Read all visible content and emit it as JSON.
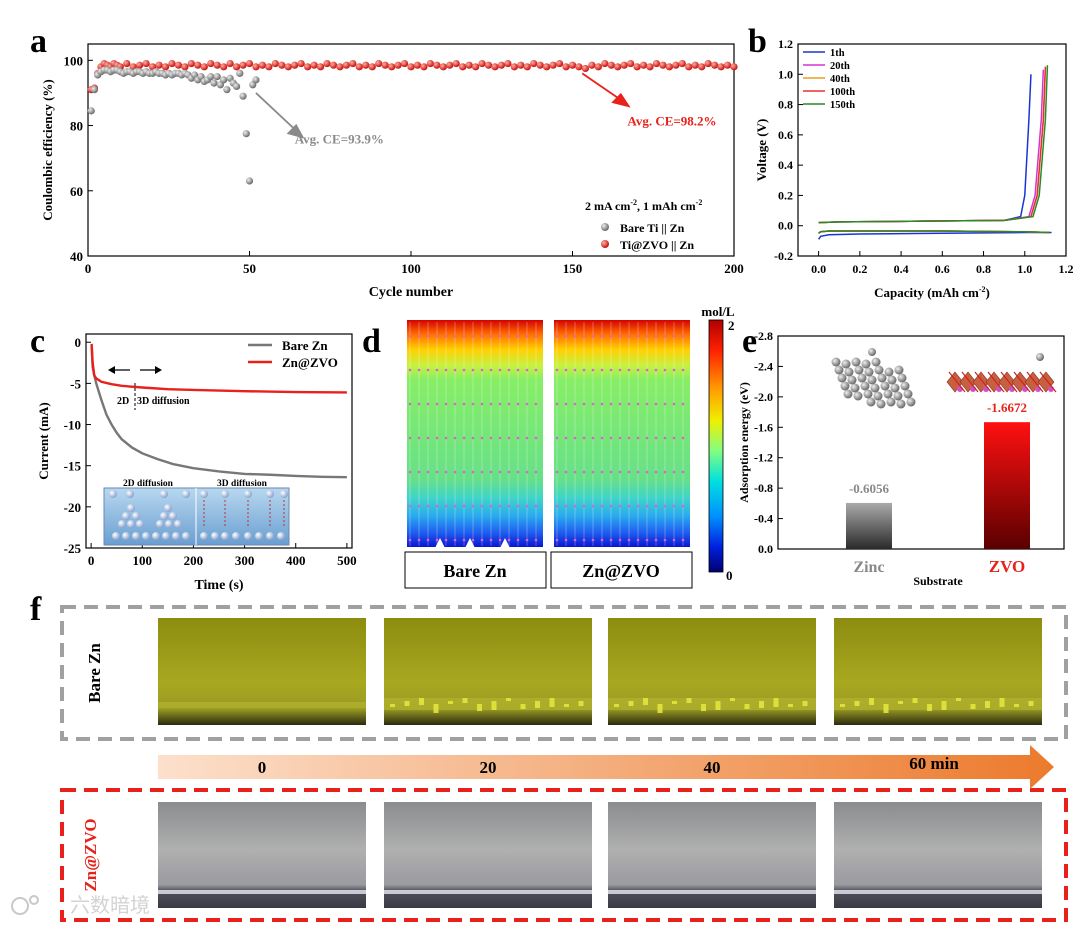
{
  "chart_data": [
    {
      "panel": "a",
      "type": "scatter",
      "xlabel": "Cycle number",
      "ylabel": "Coulombic efficiency (%)",
      "xlim": [
        0,
        200
      ],
      "ylim": [
        40,
        105
      ],
      "xticks": [
        0,
        50,
        100,
        150,
        200
      ],
      "yticks": [
        40,
        60,
        80,
        100
      ],
      "condition": "2 mA cm⁻², 1 mAh cm⁻²",
      "condition_main": "2 mA cm",
      "condition_sup1": "-2",
      "condition_mid": ", 1 mAh cm",
      "condition_sup2": "-2",
      "annotations": [
        {
          "text": "Avg. CE=93.9%",
          "color": "#8a8a8a"
        },
        {
          "text": "Avg. CE=98.2%",
          "color": "#e8211b"
        }
      ],
      "series": [
        {
          "name": "Bare Ti || Zn",
          "color": "#8c8c8c",
          "x": [
            1,
            2,
            3,
            4,
            5,
            6,
            7,
            8,
            9,
            10,
            11,
            12,
            13,
            14,
            15,
            16,
            17,
            18,
            19,
            20,
            21,
            22,
            23,
            24,
            25,
            26,
            27,
            28,
            29,
            30,
            31,
            32,
            33,
            34,
            35,
            36,
            37,
            38,
            39,
            40,
            41,
            42,
            43,
            44,
            45,
            46,
            47,
            48,
            49,
            50,
            51,
            52
          ],
          "y": [
            84.5,
            91,
            95.5,
            96.5,
            97,
            97,
            96.5,
            97,
            97,
            96.5,
            96,
            96.5,
            96.5,
            96,
            96.5,
            96.5,
            96,
            96.5,
            96,
            96,
            96.5,
            96,
            96,
            95.5,
            96,
            95.5,
            96,
            96,
            95.5,
            96,
            95.5,
            94.5,
            95.5,
            94,
            95,
            93.5,
            94,
            95,
            93,
            95,
            92.5,
            94,
            91,
            94.5,
            93,
            92,
            96,
            89,
            77.5,
            63,
            92.5,
            94
          ]
        },
        {
          "name": "Ti@ZVO || Zn",
          "color": "#e8211b",
          "x": [
            1,
            2,
            3,
            4,
            5,
            6,
            7,
            8,
            9,
            10,
            12,
            14,
            16,
            18,
            20,
            22,
            24,
            26,
            28,
            30,
            32,
            34,
            36,
            38,
            40,
            42,
            44,
            46,
            48,
            50,
            52,
            54,
            56,
            58,
            60,
            62,
            64,
            66,
            68,
            70,
            72,
            74,
            76,
            78,
            80,
            82,
            84,
            86,
            88,
            90,
            92,
            94,
            96,
            98,
            100,
            102,
            104,
            106,
            108,
            110,
            112,
            114,
            116,
            118,
            120,
            122,
            124,
            126,
            128,
            130,
            132,
            134,
            136,
            138,
            140,
            142,
            144,
            146,
            148,
            150,
            152,
            154,
            156,
            158,
            160,
            162,
            164,
            166,
            168,
            170,
            172,
            174,
            176,
            178,
            180,
            182,
            184,
            186,
            188,
            190,
            192,
            194,
            196,
            198,
            200
          ],
          "y": [
            91,
            91.5,
            96,
            98,
            99,
            98.5,
            98,
            99,
            98.5,
            98,
            99,
            98,
            98.5,
            99,
            98,
            98.5,
            98,
            99,
            98.5,
            98,
            99,
            98.5,
            98,
            99,
            98.5,
            98,
            99,
            98,
            98.5,
            99,
            98,
            98.5,
            98,
            99,
            98.5,
            98,
            98.5,
            99,
            98,
            98.5,
            98,
            99,
            98.5,
            98,
            98.5,
            99,
            98,
            98.5,
            98,
            99,
            98.5,
            98,
            98.5,
            99,
            98,
            98.5,
            98,
            99,
            98.5,
            98,
            98.5,
            99,
            98,
            98.5,
            98,
            99,
            98.5,
            98,
            98.5,
            99,
            98,
            98.5,
            98,
            99,
            98.5,
            98,
            98.5,
            99,
            98,
            98.5,
            98,
            97.5,
            98.5,
            98,
            99,
            98.5,
            98,
            98.5,
            99,
            98,
            98.5,
            98,
            99,
            98.5,
            98,
            98.5,
            99,
            98,
            98.5,
            98,
            99,
            98.5,
            98,
            98.5,
            98
          ]
        }
      ]
    },
    {
      "panel": "b",
      "type": "line",
      "xlabel": "Capacity (mAh cm⁻²)",
      "xlabel_main": "Capacity (mAh cm",
      "xlabel_sup": "-2",
      "xlabel_end": ")",
      "ylabel": "Voltage (V)",
      "xlim": [
        -0.1,
        1.2
      ],
      "ylim": [
        -0.2,
        1.2
      ],
      "xticks": [
        0.0,
        0.2,
        0.4,
        0.6,
        0.8,
        1.0,
        1.2
      ],
      "yticks": [
        -0.2,
        0.0,
        0.2,
        0.4,
        0.6,
        0.8,
        1.0,
        1.2
      ],
      "series": [
        {
          "name": "1th",
          "color": "#1a35d6",
          "charge_x": [
            0.0,
            0.1,
            0.5,
            0.9,
            0.98,
            1.0,
            1.02,
            1.03
          ],
          "charge_y": [
            0.02,
            0.025,
            0.03,
            0.035,
            0.06,
            0.2,
            0.7,
            1.0
          ],
          "discharge_x": [
            0.0,
            0.01,
            0.05,
            0.2,
            0.6,
            1.0,
            1.13
          ],
          "discharge_y": [
            -0.09,
            -0.07,
            -0.06,
            -0.055,
            -0.05,
            -0.045,
            -0.045
          ]
        },
        {
          "name": "20th",
          "color": "#d434d4",
          "charge_x": [
            0.0,
            0.1,
            0.5,
            0.9,
            1.02,
            1.05,
            1.08,
            1.09
          ],
          "charge_y": [
            0.02,
            0.025,
            0.03,
            0.035,
            0.06,
            0.2,
            0.7,
            1.03
          ],
          "discharge_x": [
            0.0,
            0.01,
            0.05,
            0.2,
            0.6,
            1.0,
            1.12
          ],
          "discharge_y": [
            -0.05,
            -0.04,
            -0.035,
            -0.035,
            -0.035,
            -0.04,
            -0.045
          ]
        },
        {
          "name": "40th",
          "color": "#e8a020",
          "charge_x": [
            0.0,
            0.1,
            0.5,
            0.9,
            1.03,
            1.06,
            1.09,
            1.1
          ],
          "charge_y": [
            0.02,
            0.025,
            0.03,
            0.035,
            0.06,
            0.2,
            0.7,
            1.04
          ],
          "discharge_x": [
            0.0,
            0.01,
            0.05,
            0.2,
            0.6,
            1.0,
            1.12
          ],
          "discharge_y": [
            -0.05,
            -0.04,
            -0.035,
            -0.035,
            -0.035,
            -0.04,
            -0.045
          ]
        },
        {
          "name": "100th",
          "color": "#e83030",
          "charge_x": [
            0.0,
            0.1,
            0.5,
            0.9,
            1.03,
            1.06,
            1.09,
            1.1
          ],
          "charge_y": [
            0.02,
            0.025,
            0.03,
            0.035,
            0.06,
            0.2,
            0.7,
            1.05
          ],
          "discharge_x": [
            0.0,
            0.01,
            0.05,
            0.2,
            0.6,
            1.0,
            1.12
          ],
          "discharge_y": [
            -0.05,
            -0.04,
            -0.035,
            -0.035,
            -0.035,
            -0.04,
            -0.045
          ]
        },
        {
          "name": "150th",
          "color": "#2a8a2a",
          "charge_x": [
            0.0,
            0.1,
            0.5,
            0.9,
            1.04,
            1.07,
            1.1,
            1.11
          ],
          "charge_y": [
            0.02,
            0.025,
            0.03,
            0.035,
            0.06,
            0.2,
            0.7,
            1.06
          ],
          "discharge_x": [
            0.0,
            0.01,
            0.05,
            0.2,
            0.6,
            1.0,
            1.12
          ],
          "discharge_y": [
            -0.05,
            -0.04,
            -0.035,
            -0.035,
            -0.035,
            -0.04,
            -0.045
          ]
        }
      ]
    },
    {
      "panel": "c",
      "type": "line",
      "xlabel": "Time (s)",
      "ylabel": "Current (mA)",
      "xlim": [
        -10,
        510
      ],
      "ylim": [
        -25,
        1
      ],
      "xticks": [
        0,
        100,
        200,
        300,
        400,
        500
      ],
      "yticks": [
        0,
        -5,
        -10,
        -15,
        -20,
        -25
      ],
      "annotations": [
        "2D",
        "3D diffusion"
      ],
      "inset_labels": [
        "2D diffusion",
        "3D diffusion"
      ],
      "series": [
        {
          "name": "Bare Zn",
          "color": "#777777",
          "x": [
            1,
            3,
            6,
            10,
            15,
            20,
            30,
            40,
            50,
            60,
            80,
            100,
            130,
            160,
            200,
            250,
            300,
            350,
            400,
            450,
            500
          ],
          "y": [
            -0.5,
            -3,
            -4,
            -5,
            -6,
            -7,
            -8.8,
            -10,
            -11,
            -11.8,
            -12.8,
            -13.5,
            -14.2,
            -14.8,
            -15.3,
            -15.7,
            -16,
            -16.1,
            -16.25,
            -16.35,
            -16.4
          ]
        },
        {
          "name": "Zn@ZVO",
          "color": "#e8211b",
          "x": [
            1,
            3,
            6,
            10,
            20,
            40,
            60,
            100,
            150,
            200,
            300,
            400,
            500
          ],
          "y": [
            -0.2,
            -2.5,
            -4,
            -4.4,
            -4.8,
            -5.1,
            -5.3,
            -5.5,
            -5.7,
            -5.8,
            -5.95,
            -6.05,
            -6.1
          ]
        }
      ]
    },
    {
      "panel": "d",
      "type": "heatmap",
      "colorbar_unit": "mol/L",
      "colorbar_max": "2",
      "colorbar_min": "0",
      "labels": [
        "Bare Zn",
        "Zn@ZVO"
      ]
    },
    {
      "panel": "e",
      "type": "bar",
      "xlabel": "Substrate",
      "ylabel": "Adsorption energy (eV)",
      "categories": [
        "Zinc",
        "ZVO"
      ],
      "values": [
        -0.6056,
        -1.6672
      ],
      "value_labels": [
        "-0.6056",
        "-1.6672"
      ],
      "colors": [
        "#444444",
        "#e8211b"
      ],
      "label_colors": [
        "#888888",
        "#e8211b"
      ],
      "ylim": [
        0,
        -2.8
      ],
      "yticks": [
        "-2.8",
        "-2.4",
        "-2.0",
        "-1.6",
        "-1.2",
        "-0.8",
        "-0.4",
        "0.0"
      ]
    }
  ],
  "panels": {
    "a": "a",
    "b": "b",
    "c": "c",
    "d": "d",
    "e": "e",
    "f": "f"
  },
  "panel_f": {
    "row_labels": [
      "Bare Zn",
      "Zn@ZVO"
    ],
    "time_labels": [
      "0",
      "20",
      "40",
      "60 min"
    ]
  },
  "watermark": "六数暗境",
  "colors": {
    "red": "#e8211b",
    "gray": "#8c8c8c"
  }
}
